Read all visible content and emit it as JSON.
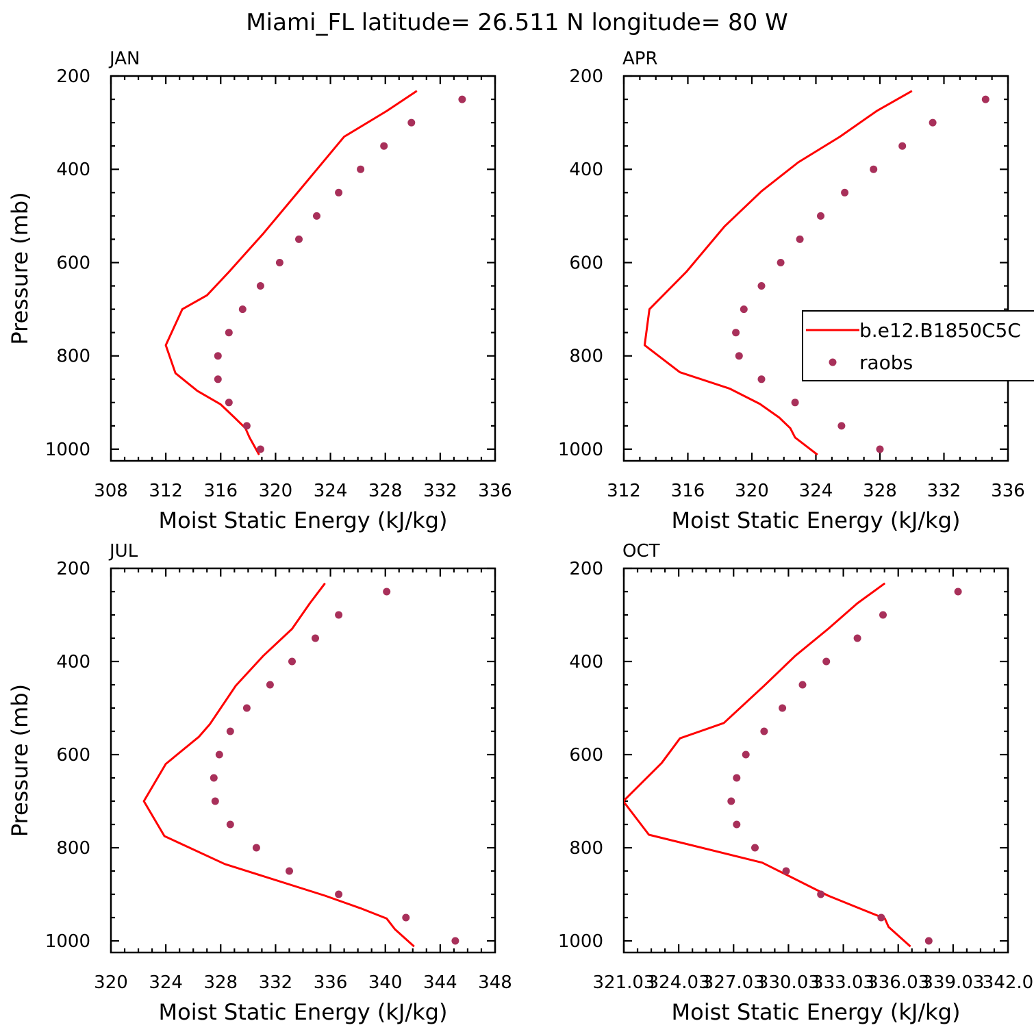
{
  "title": "Miami_FL  latitude= 26.511 N longitude= 80 W",
  "colors": {
    "model": "#ff0000",
    "obs": "#a8305a"
  },
  "legend": {
    "entries": [
      {
        "label": "b.e12.B1850C5C",
        "style": "line",
        "color": "#ff0000"
      },
      {
        "label": "raobs",
        "style": "marker",
        "color": "#a8305a"
      }
    ]
  },
  "chart_data": [
    {
      "type": "line",
      "title": "JAN",
      "xlabel": "Moist Static Energy (kJ/kg)",
      "ylabel": "Pressure (mb)",
      "xlim": [
        308,
        336
      ],
      "xticks": [
        308,
        312,
        316,
        320,
        324,
        328,
        332,
        336
      ],
      "xticklabels": [
        "308",
        "312",
        "316",
        "320",
        "324",
        "328",
        "332",
        "336"
      ],
      "ylim": [
        200,
        1025
      ],
      "yticks": [
        200,
        400,
        600,
        800,
        1000
      ],
      "yticklabels": [
        "200",
        "400",
        "600",
        "800",
        "1000"
      ],
      "series": [
        {
          "name": "b.e12.B1850C5C",
          "style": "line",
          "x": [
            330.3,
            328.1,
            325.0,
            321.8,
            319.1,
            316.6,
            315.0,
            313.2,
            312.0,
            312.7,
            314.3,
            316.0,
            317.0,
            317.8,
            318.1,
            318.8
          ],
          "y": [
            232,
            275,
            330,
            443,
            538,
            620,
            670,
            700,
            777,
            837,
            875,
            904,
            932,
            955,
            975,
            1012
          ]
        },
        {
          "name": "raobs",
          "style": "marker",
          "x": [
            333.6,
            329.9,
            327.9,
            326.2,
            324.6,
            323.0,
            321.7,
            320.3,
            318.9,
            317.6,
            316.6,
            315.8,
            315.8,
            316.6,
            317.9,
            318.9
          ],
          "y": [
            250,
            300,
            350,
            400,
            450,
            500,
            550,
            600,
            650,
            700,
            750,
            800,
            850,
            900,
            950,
            1000
          ]
        }
      ]
    },
    {
      "type": "line",
      "title": "APR",
      "xlabel": "Moist Static Energy (kJ/kg)",
      "ylabel": "",
      "xlim": [
        312,
        336
      ],
      "xticks": [
        312,
        316,
        320,
        324,
        328,
        332,
        336
      ],
      "xticklabels": [
        "312",
        "316",
        "320",
        "324",
        "328",
        "332",
        "336"
      ],
      "ylim": [
        200,
        1025
      ],
      "yticks": [
        200,
        400,
        600,
        800,
        1000
      ],
      "yticklabels": [
        "200",
        "400",
        "600",
        "800",
        "1000"
      ],
      "series": [
        {
          "name": "b.e12.B1850C5C",
          "style": "line",
          "x": [
            330.0,
            327.8,
            325.5,
            322.9,
            320.6,
            318.3,
            315.9,
            313.6,
            313.3,
            315.5,
            318.6,
            320.5,
            321.7,
            322.4,
            322.7,
            324.1
          ],
          "y": [
            232,
            275,
            330,
            385,
            447,
            522,
            620,
            700,
            777,
            835,
            870,
            903,
            932,
            955,
            975,
            1012
          ]
        },
        {
          "name": "raobs",
          "style": "marker",
          "x": [
            334.6,
            331.3,
            329.4,
            327.6,
            325.8,
            324.3,
            323.0,
            321.8,
            320.6,
            319.5,
            319.0,
            319.2,
            320.6,
            322.7,
            325.6,
            328.0
          ],
          "y": [
            250,
            300,
            350,
            400,
            450,
            500,
            550,
            600,
            650,
            700,
            750,
            800,
            850,
            900,
            950,
            1000
          ]
        }
      ]
    },
    {
      "type": "line",
      "title": "JUL",
      "xlabel": "Moist Static Energy (kJ/kg)",
      "ylabel": "Pressure (mb)",
      "xlim": [
        320,
        348
      ],
      "xticks": [
        320,
        324,
        328,
        332,
        336,
        340,
        344,
        348
      ],
      "xticklabels": [
        "320",
        "324",
        "328",
        "332",
        "336",
        "340",
        "344",
        "348"
      ],
      "ylim": [
        200,
        1025
      ],
      "yticks": [
        200,
        400,
        600,
        800,
        1000
      ],
      "yticklabels": [
        "200",
        "400",
        "600",
        "800",
        "1000"
      ],
      "series": [
        {
          "name": "b.e12.B1850C5C",
          "style": "line",
          "x": [
            335.6,
            334.5,
            333.2,
            331.1,
            329.1,
            327.2,
            326.4,
            324.0,
            322.4,
            323.9,
            328.3,
            335.6,
            338.2,
            340.1,
            340.7,
            342.1
          ],
          "y": [
            232,
            275,
            330,
            388,
            452,
            535,
            562,
            620,
            700,
            775,
            835,
            903,
            930,
            952,
            975,
            1012
          ]
        },
        {
          "name": "raobs",
          "style": "marker",
          "x": [
            340.1,
            336.6,
            334.9,
            333.2,
            331.6,
            329.9,
            328.7,
            327.9,
            327.5,
            327.6,
            328.7,
            330.6,
            333.0,
            336.6,
            341.5,
            345.1
          ],
          "y": [
            250,
            300,
            350,
            400,
            450,
            500,
            550,
            600,
            650,
            700,
            750,
            800,
            850,
            900,
            950,
            1000
          ]
        }
      ]
    },
    {
      "type": "line",
      "title": "OCT",
      "xlabel": "Moist Static Energy (kJ/kg)",
      "ylabel": "",
      "xlim": [
        321.03,
        342.03
      ],
      "xticks": [
        321.03,
        324.03,
        327.03,
        330.03,
        333.03,
        336.03,
        339.03,
        342.03
      ],
      "xticklabels": [
        "321.03",
        "324.03",
        "327.03",
        "330.03",
        "333.03",
        "336.03",
        "339.03",
        "342.0"
      ],
      "ylim": [
        200,
        1025
      ],
      "yticks": [
        200,
        400,
        600,
        800,
        1000
      ],
      "yticklabels": [
        "200",
        "400",
        "600",
        "800",
        "1000"
      ],
      "series": [
        {
          "name": "b.e12.B1850C5C",
          "style": "line",
          "x": [
            335.3,
            333.8,
            332.2,
            330.4,
            328.7,
            326.5,
            324.1,
            323.1,
            321.0,
            322.4,
            328.6,
            332.2,
            333.9,
            335.3,
            335.5,
            336.7
          ],
          "y": [
            232,
            275,
            330,
            388,
            452,
            532,
            565,
            618,
            700,
            772,
            832,
            903,
            930,
            952,
            970,
            1012
          ]
        },
        {
          "name": "raobs",
          "style": "marker",
          "x": [
            339.3,
            335.2,
            333.8,
            332.1,
            330.8,
            329.7,
            328.7,
            327.7,
            327.2,
            326.9,
            327.2,
            328.2,
            329.9,
            331.8,
            335.1,
            337.7
          ],
          "y": [
            250,
            300,
            350,
            400,
            450,
            500,
            550,
            600,
            650,
            700,
            750,
            800,
            850,
            900,
            950,
            1000
          ]
        }
      ]
    }
  ]
}
